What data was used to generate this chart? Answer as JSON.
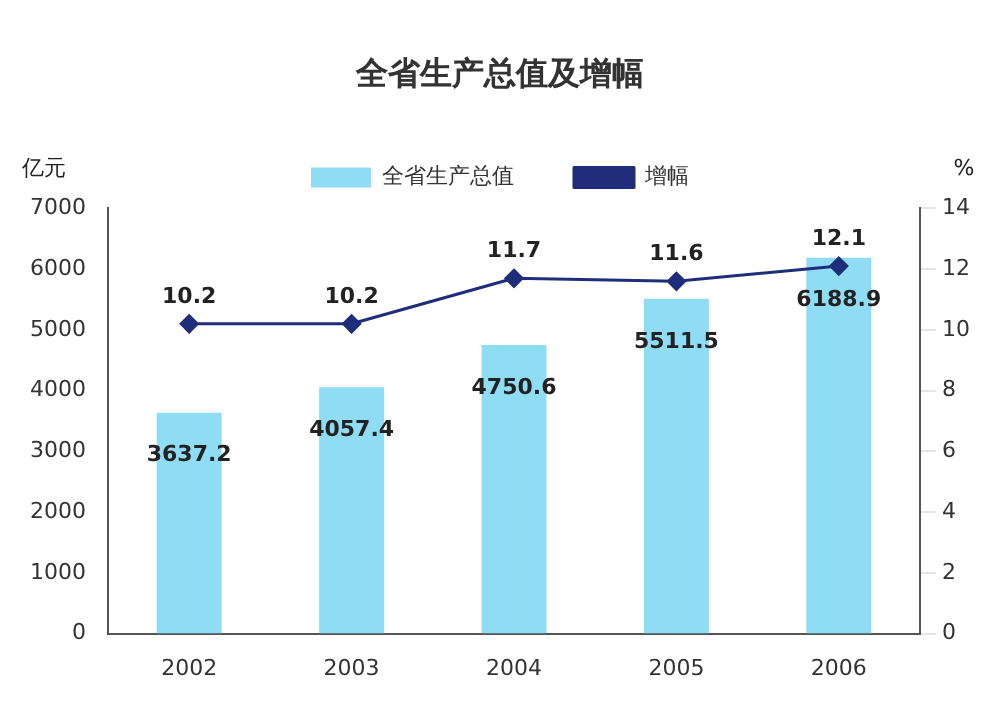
{
  "chart_data": {
    "type": "bar",
    "title": "全省生产总值及增幅",
    "ylabel": "亿元",
    "y2label": "%",
    "categories": [
      "2002",
      "2003",
      "2004",
      "2005",
      "2006"
    ],
    "series": [
      {
        "name": "全省生产总值",
        "color": "#8fdcf5",
        "values": [
          3637.2,
          4057.4,
          4750.6,
          5511.5,
          6188.9
        ]
      },
      {
        "name": "增幅",
        "type": "line",
        "axis": "y2",
        "color": "#1f2d7a",
        "values": [
          10.2,
          10.2,
          11.7,
          11.6,
          12.1
        ]
      }
    ],
    "ylim": [
      0,
      7000
    ],
    "yticks": [
      0,
      1000,
      2000,
      3000,
      4000,
      5000,
      6000,
      7000
    ],
    "y2lim": [
      0,
      14
    ],
    "y2ticks": [
      0,
      2,
      4,
      6,
      8,
      10,
      12,
      14
    ],
    "data_labels": true,
    "legend": "top",
    "grid": false,
    "marker": "diamond",
    "line_style": "solid"
  }
}
